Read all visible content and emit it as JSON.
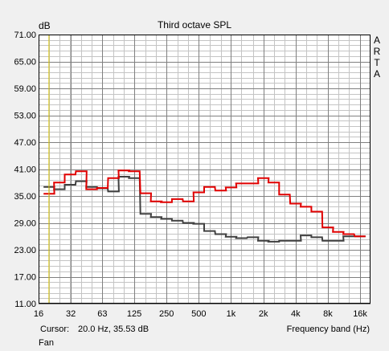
{
  "chart_data": {
    "type": "line",
    "title": "Third octave SPL",
    "ylabel": "dB",
    "xlabel": "Frequency band (Hz)",
    "y_ticks": [
      "71.00",
      "65.00",
      "59.00",
      "53.00",
      "47.00",
      "41.00",
      "35.00",
      "29.00",
      "23.00",
      "17.00",
      "11.00"
    ],
    "ylim": [
      11,
      71
    ],
    "x_ticks": [
      "16",
      "32",
      "63",
      "125",
      "250",
      "500",
      "1k",
      "2k",
      "4k",
      "8k",
      "16k"
    ],
    "bands": [
      20,
      25,
      31.5,
      40,
      50,
      63,
      80,
      100,
      125,
      160,
      200,
      250,
      315,
      400,
      500,
      630,
      800,
      1000,
      1250,
      1600,
      2000,
      2500,
      3150,
      4000,
      5000,
      6300,
      8000,
      10000,
      12500,
      16000
    ],
    "cursor_frequency": 20.0,
    "series": [
      {
        "color": "#e00000",
        "values": [
          35.5,
          38,
          39.8,
          40.5,
          36.5,
          36.8,
          39,
          40.7,
          40.5,
          35.6,
          33.8,
          33.6,
          34.3,
          33.8,
          35.8,
          37,
          36.2,
          36.9,
          37.8,
          37.8,
          39,
          38,
          35.3,
          33.3,
          32.6,
          31.5,
          28,
          27,
          26.5,
          26
        ]
      },
      {
        "color": "#404040",
        "values": [
          37,
          36.5,
          37.5,
          38.3,
          37,
          36.7,
          36,
          39.3,
          39,
          31,
          30.3,
          29.9,
          29.5,
          29,
          28.8,
          27.2,
          26.5,
          25.9,
          25.6,
          25.8,
          25,
          24.8,
          25,
          25,
          26.2,
          25.8,
          25,
          25,
          26,
          26
        ]
      }
    ],
    "cursor": {
      "label": "Cursor:",
      "value": "20.0 Hz, 35.53 dB",
      "color": "#d4c000"
    },
    "grid": true
  },
  "watermark": "ARTA",
  "footer": "Fan"
}
